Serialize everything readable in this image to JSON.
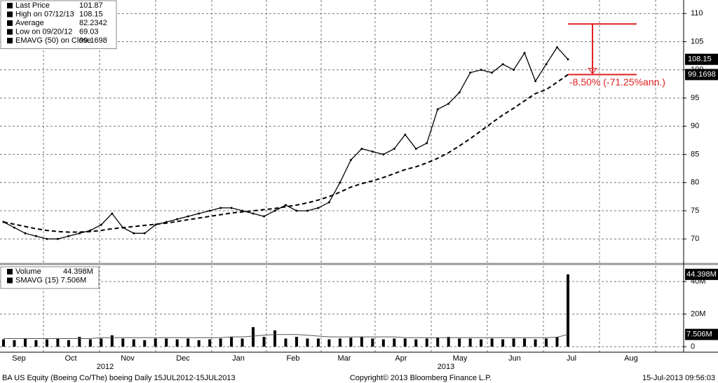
{
  "chart_data": [
    {
      "type": "line",
      "legend": [
        {
          "label": "Last Price",
          "value": "101.87"
        },
        {
          "label": "High on 07/12/13",
          "value": "108.15"
        },
        {
          "label": "Average",
          "value": "82.2342"
        },
        {
          "label": "Low on 09/20/12",
          "value": "69.03"
        },
        {
          "label": "EMAVG (50) on Close",
          "value": "99.1698"
        }
      ],
      "series": [
        {
          "name": "Last Price",
          "color": "#000000",
          "values": [
            73,
            72,
            71,
            70.5,
            70,
            70,
            70.5,
            71,
            71.5,
            72.5,
            74.5,
            72,
            71,
            71,
            72.5,
            73,
            73.5,
            74,
            74.5,
            75,
            75.5,
            75.5,
            75,
            74.5,
            74,
            75,
            76,
            75,
            75,
            75.5,
            76.5,
            80,
            84,
            86,
            85.5,
            85,
            86,
            88.5,
            86,
            87,
            93,
            94,
            96,
            99.5,
            100,
            99.5,
            101,
            100,
            103,
            98,
            101,
            104,
            101.87
          ]
        },
        {
          "name": "EMAVG (50) on Close",
          "color": "#000000",
          "values": [
            73,
            72.6,
            72.2,
            71.8,
            71.5,
            71.3,
            71.2,
            71.2,
            71.3,
            71.5,
            71.8,
            72,
            72.2,
            72.4,
            72.6,
            72.8,
            73.1,
            73.4,
            73.7,
            74,
            74.3,
            74.6,
            74.8,
            75,
            75.2,
            75.4,
            75.7,
            76,
            76.4,
            76.9,
            77.5,
            78.3,
            79.2,
            79.8,
            80.3,
            80.9,
            81.6,
            82.3,
            82.8,
            83.5,
            84.3,
            85.3,
            86.5,
            87.8,
            89.2,
            90.6,
            92,
            93.2,
            94.5,
            95.8,
            96.5,
            97.8,
            99.1698
          ]
        }
      ],
      "ylim": [
        65.8,
        112.4
      ],
      "yticks": [
        70,
        75,
        80,
        85,
        90,
        95,
        100,
        105,
        110
      ],
      "grid": true,
      "annotation": {
        "text": "-8.50% (-71.25%ann.)",
        "from": 108.15,
        "to": 99.1698,
        "color": "#e02020"
      }
    },
    {
      "type": "bar",
      "legend": [
        {
          "label": "Volume",
          "value": "44.398M"
        },
        {
          "label": "SMAVG (15) 7.506M"
        }
      ],
      "value_label": "7.506M",
      "series": [
        {
          "name": "Volume",
          "color": "#000000",
          "values": [
            4.5,
            4,
            5,
            4,
            4.5,
            5,
            4,
            6,
            4.5,
            5,
            7,
            5,
            4.5,
            4,
            5,
            5,
            4.5,
            5,
            4,
            4.5,
            5,
            6,
            5,
            12,
            6,
            10,
            5,
            6,
            5,
            5,
            4.5,
            5,
            5.5,
            6,
            5,
            4.5,
            5,
            5,
            4.5,
            5,
            5.5,
            6,
            5,
            5,
            4.5,
            5,
            4.5,
            5,
            5,
            4.5,
            5,
            6,
            44.398
          ]
        },
        {
          "name": "SMAVG (15)",
          "color": "#000000",
          "values": [
            5,
            5,
            5,
            5,
            5,
            5,
            5,
            5,
            5,
            5.5,
            5.5,
            5.5,
            5.5,
            5.5,
            5.5,
            5.5,
            5.5,
            5.5,
            5.5,
            5.5,
            5.5,
            6,
            6,
            6.5,
            7,
            7.5,
            7.5,
            7.5,
            7,
            6.5,
            6,
            6,
            6,
            6,
            6,
            6,
            6,
            5.5,
            5.5,
            5.5,
            5.5,
            5.5,
            5.5,
            5.5,
            5.5,
            5.5,
            5.5,
            5.5,
            5.5,
            5.5,
            5.5,
            5.8,
            7.506
          ]
        }
      ],
      "ylim": [
        -3.4,
        49.5
      ],
      "yticks": [
        0,
        {
          "value": 20,
          "label": "20M"
        },
        {
          "value": 40,
          "label": "40M"
        }
      ],
      "grid": true
    }
  ],
  "x_axis": {
    "months": [
      "Sep",
      "Oct",
      "Nov",
      "Dec",
      "Jan",
      "Feb",
      "Mar",
      "Apr",
      "May",
      "Jun",
      "Jul",
      "Aug"
    ],
    "years": [
      "2012",
      "2013"
    ]
  },
  "footer": {
    "left": "BA US Equity (Boeing Co/The) boeing  Daily 15JUL2012-15JUL2013",
    "center": "Copyright© 2013 Bloomberg Finance L.P.",
    "right": "15-Jul-2013 09:56:03"
  }
}
